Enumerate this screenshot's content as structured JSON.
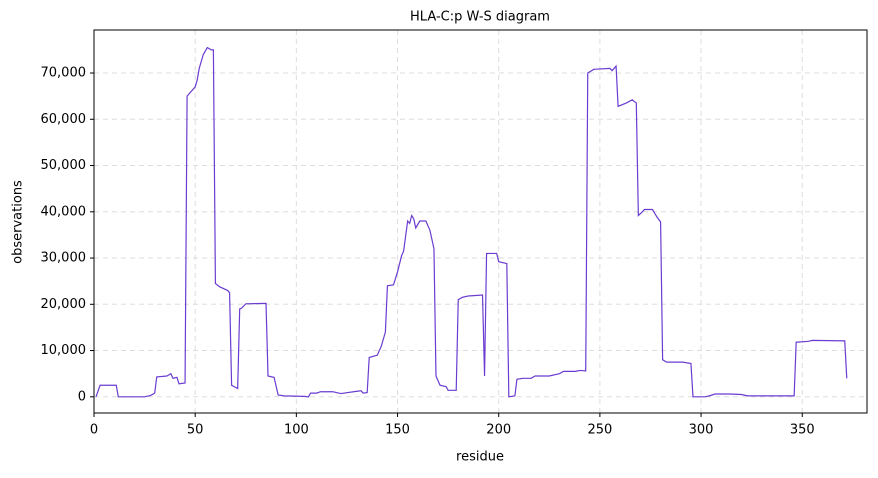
{
  "chart_data": {
    "type": "line",
    "title": "HLA-C:p W-S diagram",
    "x_label": "residue",
    "y_label": "observations",
    "x": [
      1,
      3,
      11,
      12,
      25,
      28,
      30,
      31,
      36,
      38,
      39,
      41,
      42,
      45,
      46,
      48,
      50,
      51,
      52,
      54,
      56,
      58,
      59,
      60,
      62,
      66,
      67,
      68,
      71,
      72,
      73,
      75,
      85,
      86,
      89,
      91,
      94,
      104,
      106,
      107,
      110,
      112,
      118,
      122,
      130,
      132,
      133,
      135,
      136,
      140,
      142,
      144,
      145,
      148,
      150,
      152,
      153,
      155,
      156,
      157,
      158,
      159,
      161,
      164,
      166,
      168,
      169,
      171,
      174,
      175,
      179,
      180,
      182,
      185,
      192,
      193,
      194,
      199,
      200,
      204,
      205,
      208,
      209,
      212,
      216,
      218,
      225,
      230,
      232,
      238,
      240,
      243,
      244,
      247,
      255,
      256,
      258,
      259,
      263,
      266,
      268,
      269,
      271,
      272,
      276,
      278,
      280,
      281,
      283,
      291,
      295,
      296,
      302,
      304,
      307,
      314,
      320,
      323,
      330,
      335,
      338,
      340,
      346,
      347,
      353,
      355,
      371,
      372
    ],
    "series": [
      {
        "name": "observations",
        "color": "#6a3cd1",
        "values": [
          0,
          2500,
          2500,
          0,
          0,
          300,
          800,
          4300,
          4500,
          5000,
          4000,
          4200,
          2800,
          3000,
          65000,
          66000,
          67000,
          68500,
          71000,
          74000,
          75500,
          75000,
          75000,
          24500,
          23800,
          23000,
          22500,
          2500,
          1800,
          19000,
          19200,
          20100,
          20200,
          4500,
          4200,
          400,
          200,
          100,
          0,
          800,
          800,
          1100,
          1100,
          700,
          1200,
          1300,
          800,
          900,
          8500,
          9000,
          11000,
          14000,
          24000,
          24200,
          27000,
          30500,
          31500,
          38000,
          37500,
          39200,
          38500,
          36500,
          38000,
          38000,
          36000,
          32000,
          4500,
          2500,
          2200,
          1400,
          1400,
          21000,
          21500,
          21800,
          22000,
          4500,
          31000,
          31000,
          29200,
          28800,
          0,
          200,
          3800,
          4000,
          4000,
          4500,
          4500,
          5000,
          5500,
          5500,
          5700,
          5600,
          70000,
          70800,
          71000,
          70500,
          71500,
          62800,
          63500,
          64200,
          63500,
          39200,
          40000,
          40500,
          40500,
          39000,
          37800,
          8000,
          7500,
          7500,
          7200,
          0,
          0,
          200,
          600,
          600,
          500,
          200,
          200,
          200,
          200,
          200,
          200,
          11800,
          12000,
          12200,
          12100,
          4000
        ]
      }
    ],
    "xlim": [
      0,
      382
    ],
    "xticks": [
      0,
      50,
      100,
      150,
      200,
      250,
      300,
      350
    ],
    "ylim": [
      -3500,
      79300
    ],
    "yticks": [
      0,
      {
        "value": 10000,
        "label": "10,000"
      },
      {
        "value": 20000,
        "label": "20,000"
      },
      {
        "value": 30000,
        "label": "30,000"
      },
      {
        "value": 40000,
        "label": "40,000"
      },
      {
        "value": 50000,
        "label": "50,000"
      },
      {
        "value": 60000,
        "label": "60,000"
      },
      {
        "value": 70000,
        "label": "70,000"
      }
    ],
    "grid": true
  }
}
